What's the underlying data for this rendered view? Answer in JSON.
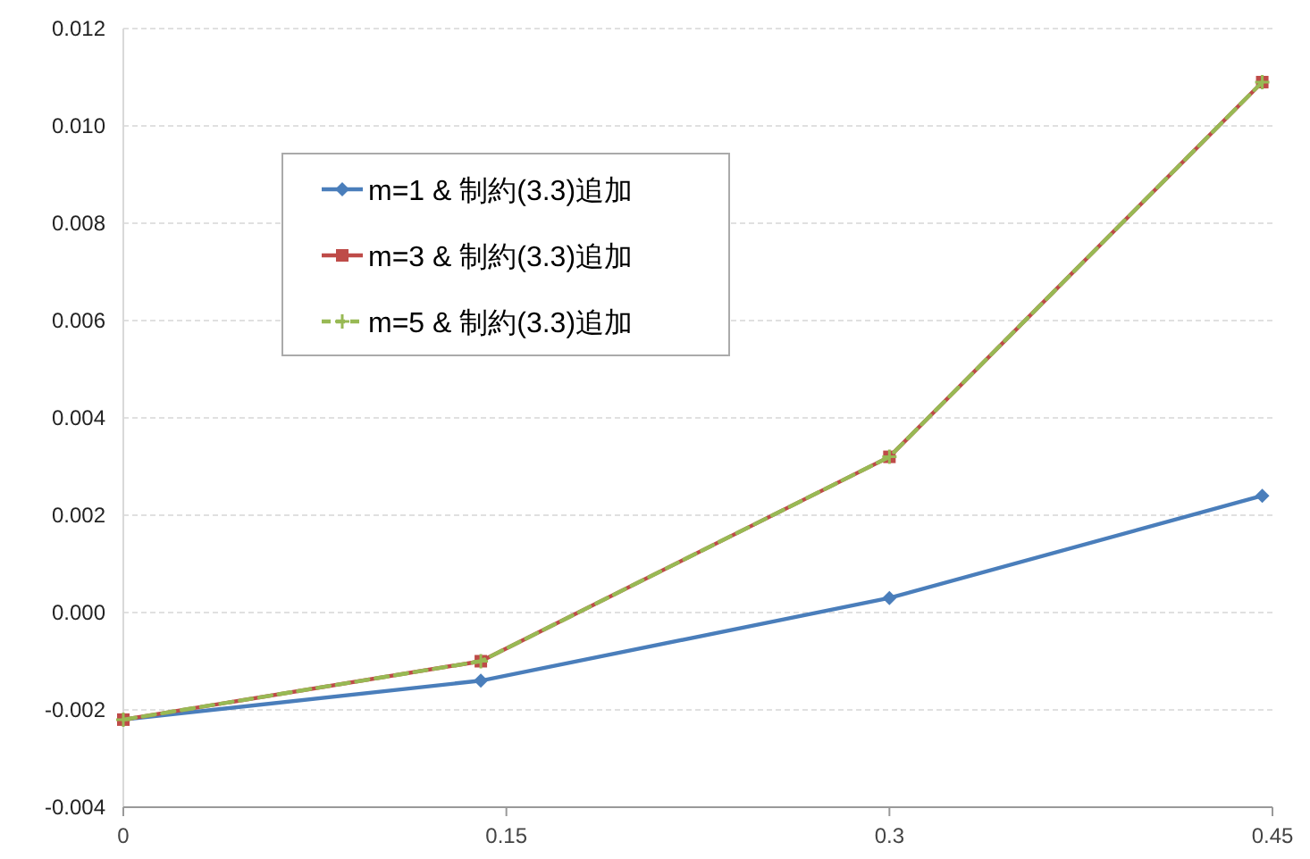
{
  "chart_data": {
    "type": "line",
    "x": [
      0,
      0.14,
      0.3,
      0.446
    ],
    "xlim": [
      0,
      0.45
    ],
    "xticks": [
      0,
      0.15,
      0.3,
      0.45
    ],
    "ylim": [
      -0.004,
      0.012
    ],
    "yticks": [
      {
        "value": -0.004,
        "label": "-0.004"
      },
      {
        "value": -0.002,
        "label": "-0.002"
      },
      {
        "value": 0,
        "label": "0.000"
      },
      {
        "value": 0.002,
        "label": "0.002"
      },
      {
        "value": 0.004,
        "label": "0.004"
      },
      {
        "value": 0.006,
        "label": "0.006"
      },
      {
        "value": 0.008,
        "label": "0.008"
      },
      {
        "value": 0.01,
        "label": "0.010"
      },
      {
        "value": 0.012,
        "label": "0.012"
      }
    ],
    "grid": "y",
    "legend": "top left",
    "series": [
      {
        "name": "m=1 & 制約(3.3)追加",
        "color": "#4a7ebb",
        "marker": "diamond",
        "line_style": "solid",
        "values": [
          -0.0022,
          -0.0014,
          0.0003,
          0.0024
        ]
      },
      {
        "name": "m=3 & 制約(3.3)追加",
        "color": "#be4b48",
        "marker": "square",
        "line_style": "solid",
        "values": [
          -0.0022,
          -0.001,
          0.0032,
          0.0109
        ]
      },
      {
        "name": "m=5 & 制約(3.3)追加",
        "color": "#98b954",
        "marker": "cross",
        "line_style": "dashed",
        "values": [
          -0.0022,
          -0.001,
          0.0032,
          0.0109
        ]
      }
    ]
  }
}
